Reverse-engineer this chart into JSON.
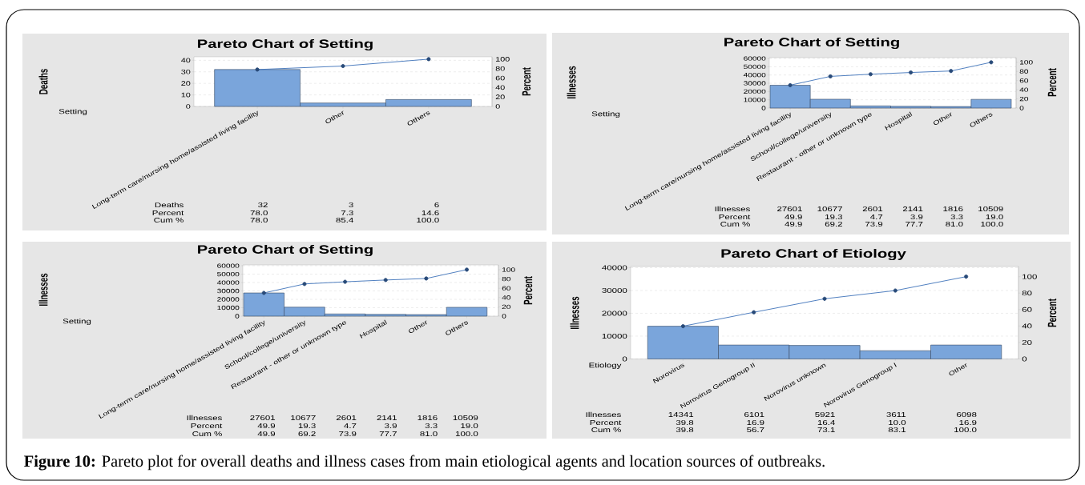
{
  "chart_data": [
    {
      "type": "bar",
      "title": "Pareto Chart of Setting",
      "xlabel": "Setting",
      "ylabel": "Deaths",
      "y2label": "Percent",
      "categories": [
        "Long-term care/nursing home/assisted living facility",
        "Other",
        "Others"
      ],
      "series": [
        {
          "type": "bar",
          "color": "#7aa5db",
          "values": [
            32,
            3,
            6
          ],
          "value_labels": [
            "32",
            "3",
            "6"
          ]
        },
        {
          "type": "line",
          "axis": "y2",
          "color": "#3d72b9",
          "marker": "circle",
          "values": [
            78.0,
            85.4,
            100.0
          ]
        }
      ],
      "ylim": [
        0,
        43
      ],
      "yticks": [
        0,
        10,
        20,
        30,
        40
      ],
      "y2lim": [
        0,
        104.9
      ],
      "y2ticks": [
        0,
        20,
        40,
        60,
        80,
        100
      ],
      "grid": "y",
      "annotations": [
        "Deaths",
        "Percent",
        "Cum %",
        "78.0",
        "7.3",
        "14.6",
        "78.0",
        "85.4",
        "100.0"
      ]
    },
    {
      "type": "bar",
      "title": "Pareto Chart of Setting",
      "xlabel": "Setting",
      "ylabel": "Illnesses",
      "y2label": "Percent",
      "categories": [
        "Long-term care/nursing home/assisted living facility",
        "School/college/university",
        "Restaurant - other or unknown type",
        "Hospital",
        "Other",
        "Others"
      ],
      "series": [
        {
          "type": "bar",
          "color": "#7aa5db",
          "values": [
            27601,
            10677,
            2601,
            2141,
            1816,
            10509
          ],
          "value_labels": [
            "27601",
            "10677",
            "2601",
            "2141",
            "1816",
            "10509"
          ]
        },
        {
          "type": "line",
          "axis": "y2",
          "color": "#3d72b9",
          "marker": "circle",
          "values": [
            49.9,
            69.2,
            73.9,
            77.7,
            81.0,
            100.0
          ]
        }
      ],
      "ylim": [
        0,
        61000
      ],
      "yticks": [
        0,
        10000,
        20000,
        30000,
        40000,
        50000,
        60000
      ],
      "y2lim": [
        0,
        110.2
      ],
      "y2ticks": [
        0,
        20,
        40,
        60,
        80,
        100
      ],
      "grid": "y",
      "annotations": [
        "Illnesses",
        "Percent",
        "Cum %",
        "49.9",
        "19.3",
        "4.7",
        "3.9",
        "3.3",
        "19.0",
        "49.9",
        "69.2",
        "73.9",
        "77.7",
        "81.0",
        "100.0"
      ]
    },
    {
      "type": "bar",
      "title": "Pareto Chart of Setting",
      "xlabel": "Setting",
      "ylabel": "Illnesses",
      "y2label": "Percent",
      "categories": [
        "Long-term care/nursing home/assisted living facility",
        "School/college/university",
        "Restaurant - other or unknown type",
        "Hospital",
        "Other",
        "Others"
      ],
      "series": [
        {
          "type": "bar",
          "color": "#7aa5db",
          "values": [
            27601,
            10677,
            2601,
            2141,
            1816,
            10509
          ],
          "value_labels": [
            "27601",
            "10677",
            "2601",
            "2141",
            "1816",
            "10509"
          ]
        },
        {
          "type": "line",
          "axis": "y2",
          "color": "#3d72b9",
          "marker": "circle",
          "values": [
            49.9,
            69.2,
            73.9,
            77.7,
            81.0,
            100.0
          ]
        }
      ],
      "ylim": [
        0,
        61000
      ],
      "yticks": [
        0,
        10000,
        20000,
        30000,
        40000,
        50000,
        60000
      ],
      "y2lim": [
        0,
        110.2
      ],
      "y2ticks": [
        0,
        20,
        40,
        60,
        80,
        100
      ],
      "grid": "y",
      "annotations": [
        "Illnesses",
        "Percent",
        "Cum %",
        "49.9",
        "19.3",
        "4.7",
        "3.9",
        "3.3",
        "19.0",
        "49.9",
        "69.2",
        "73.9",
        "77.7",
        "81.0",
        "100.0"
      ]
    },
    {
      "type": "bar",
      "title": "Pareto Chart of Etiology",
      "xlabel": "Etiology",
      "ylabel": "Illnesses",
      "y2label": "Percent",
      "categories": [
        "Norovirus",
        "Norovirus Genogroup II",
        "Norovirus unknown",
        "Norovirus Genogroup I",
        "Other"
      ],
      "series": [
        {
          "type": "bar",
          "color": "#7aa5db",
          "values": [
            14341,
            6101,
            5921,
            3611,
            6098
          ],
          "value_labels": [
            "14341",
            "6101",
            "5921",
            "3611",
            "6098"
          ]
        },
        {
          "type": "line",
          "axis": "y2",
          "color": "#3d72b9",
          "marker": "circle",
          "values": [
            39.8,
            56.7,
            73.1,
            83.1,
            100.0
          ]
        }
      ],
      "ylim": [
        0,
        40500
      ],
      "yticks": [
        0,
        10000,
        20000,
        30000,
        40000
      ],
      "y2lim": [
        0,
        112.3
      ],
      "y2ticks": [
        0,
        20,
        40,
        60,
        80,
        100
      ],
      "grid": "y",
      "annotations": [
        "Illnesses",
        "Percent",
        "Cum %",
        "39.8",
        "16.9",
        "16.4",
        "10.0",
        "16.9",
        "39.8",
        "56.7",
        "73.1",
        "83.1",
        "100.0",
        "**Figure 10:** Pareto plot for overall deaths and illness cases from main etiological agents and location sources of outbreaks."
      ]
    }
  ]
}
